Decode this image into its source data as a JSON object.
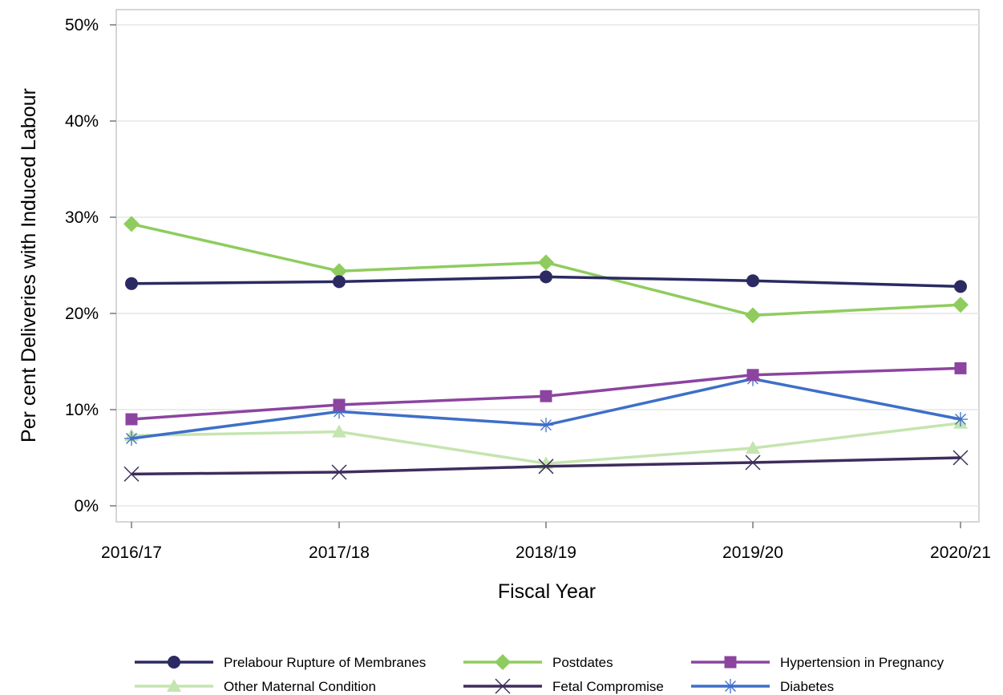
{
  "chart_data": {
    "type": "line",
    "xlabel": "Fiscal Year",
    "ylabel": "Per cent Deliveries with Induced Labour",
    "categories": [
      "2016/17",
      "2017/18",
      "2018/19",
      "2019/20",
      "2020/21"
    ],
    "ylim": [
      0,
      50
    ],
    "yticks": [
      0,
      10,
      20,
      30,
      40,
      50
    ],
    "ytick_labels": [
      "0%",
      "10%",
      "20%",
      "30%",
      "40%",
      "50%"
    ],
    "grid": true,
    "legend_position": "bottom",
    "series": [
      {
        "name": "Prelabour Rupture of Membranes",
        "values": [
          23.1,
          23.3,
          23.8,
          23.4,
          22.8
        ],
        "color": "#2b2a63",
        "marker": "circle"
      },
      {
        "name": "Postdates",
        "values": [
          29.3,
          24.4,
          25.3,
          19.8,
          20.9
        ],
        "color": "#8fcc5e",
        "marker": "diamond"
      },
      {
        "name": "Hypertension in Pregnancy",
        "values": [
          9.0,
          10.5,
          11.4,
          13.6,
          14.3
        ],
        "color": "#8c44a0",
        "marker": "square"
      },
      {
        "name": "Other Maternal Condition",
        "values": [
          7.3,
          7.7,
          4.4,
          6.0,
          8.6
        ],
        "color": "#c5e5b0",
        "marker": "triangle"
      },
      {
        "name": "Fetal Compromise",
        "values": [
          3.3,
          3.5,
          4.1,
          4.5,
          5.0
        ],
        "color": "#3e2d5c",
        "marker": "x"
      },
      {
        "name": "Diabetes",
        "values": [
          7.0,
          9.8,
          8.4,
          13.2,
          9.0
        ],
        "color": "#3e6fc8",
        "marker": "asterisk"
      }
    ]
  }
}
